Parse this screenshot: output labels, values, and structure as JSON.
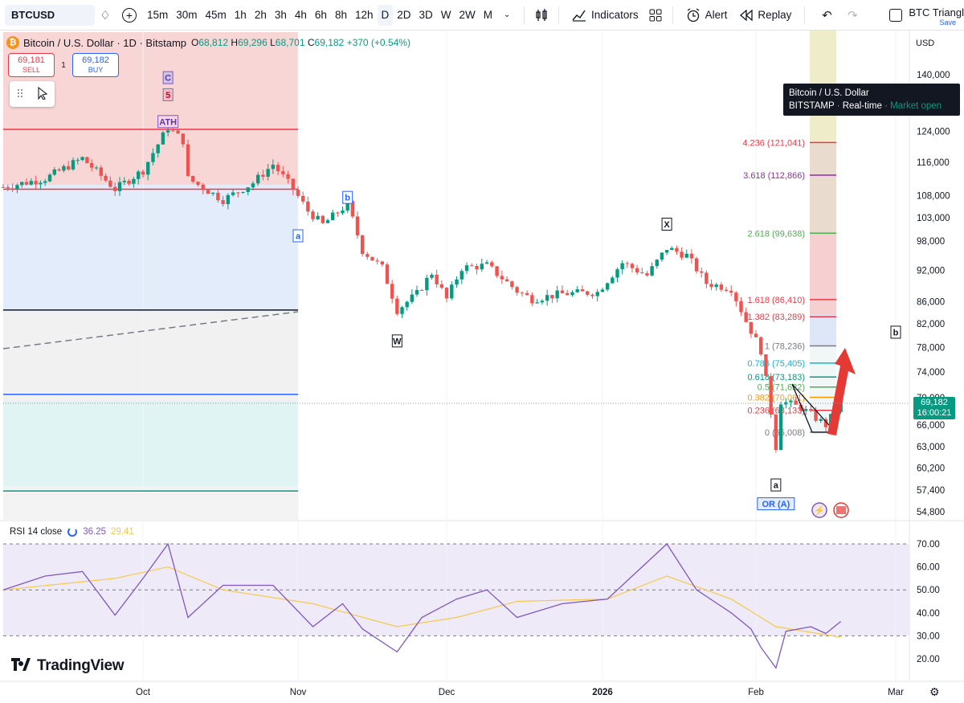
{
  "toolbar": {
    "symbol": "BTCUSD",
    "timeframes": [
      "15m",
      "30m",
      "45m",
      "1h",
      "2h",
      "3h",
      "4h",
      "6h",
      "8h",
      "12h",
      "D",
      "2D",
      "3D",
      "W",
      "2W",
      "M"
    ],
    "active_timeframe": "D",
    "indicators_label": "Indicators",
    "alert_label": "Alert",
    "replay_label": "Replay",
    "layout_name": "BTC Triangl",
    "layout_save": "Save"
  },
  "legend": {
    "title": "Bitcoin / U.S. Dollar · 1D · Bitstamp",
    "o_key": "O",
    "o_val": "68,812",
    "h_key": "H",
    "h_val": "69,296",
    "l_key": "L",
    "l_val": "68,701",
    "c_key": "C",
    "c_val": "69,182",
    "change": "+370 (+0.54%)"
  },
  "trade": {
    "sell_price": "69,181",
    "sell_label": "SELL",
    "spread": "1",
    "buy_price": "69,182",
    "buy_label": "BUY"
  },
  "tooltip": {
    "line1": "Bitcoin / U.S. Dollar",
    "exchange": "BITSTAMP",
    "realtime": "Real-time",
    "status": "Market open"
  },
  "price_tag": {
    "price": "69,182",
    "countdown": "16:00:21"
  },
  "currency": "USD",
  "colors": {
    "up": "#089981",
    "down": "#ef5350",
    "rsi": "#7e57c2",
    "rsi_ma": "#f7c948",
    "accent": "#2962ff"
  },
  "chart_data": {
    "type": "candlestick",
    "price_axis": {
      "scale": "log",
      "ticks": [
        "140,000",
        "124,000",
        "116,000",
        "108,000",
        "103,000",
        "98,000",
        "92,000",
        "86,000",
        "82,000",
        "78,000",
        "74,000",
        "70,000",
        "66,000",
        "63,000",
        "60,200",
        "57,400",
        "54,800"
      ],
      "tick_values": [
        140000,
        124000,
        116000,
        108000,
        103000,
        98000,
        92000,
        86000,
        82000,
        78000,
        74000,
        70000,
        66000,
        63000,
        60200,
        57400,
        54800
      ]
    },
    "time_axis": {
      "labels": [
        "Oct",
        "Nov",
        "Dec",
        "2026",
        "Feb",
        "Mar"
      ]
    },
    "price_path": [
      [
        "2025-09-01",
        110000
      ],
      [
        "2025-09-10",
        112000
      ],
      [
        "2025-09-18",
        117000
      ],
      [
        "2025-09-25",
        109500
      ],
      [
        "2025-10-01",
        114000
      ],
      [
        "2025-10-06",
        125000
      ],
      [
        "2025-10-09",
        121500
      ],
      [
        "2025-10-10",
        112000
      ],
      [
        "2025-10-17",
        107000
      ],
      [
        "2025-10-23",
        111000
      ],
      [
        "2025-10-27",
        115500
      ],
      [
        "2025-10-31",
        109500
      ],
      [
        "2025-11-03",
        104500
      ],
      [
        "2025-11-06",
        101500
      ],
      [
        "2025-11-11",
        106000
      ],
      [
        "2025-11-14",
        96000
      ],
      [
        "2025-11-18",
        92500
      ],
      [
        "2025-11-21",
        84500
      ],
      [
        "2025-11-25",
        87500
      ],
      [
        "2025-11-28",
        91500
      ],
      [
        "2025-12-01",
        86500
      ],
      [
        "2025-12-04",
        92500
      ],
      [
        "2025-12-09",
        93000
      ],
      [
        "2025-12-15",
        88000
      ],
      [
        "2025-12-18",
        86500
      ],
      [
        "2025-12-24",
        87500
      ],
      [
        "2025-12-31",
        87800
      ],
      [
        "2026-01-05",
        93500
      ],
      [
        "2026-01-10",
        91000
      ],
      [
        "2026-01-14",
        96500
      ],
      [
        "2026-01-18",
        95000
      ],
      [
        "2026-01-22",
        89500
      ],
      [
        "2026-01-27",
        88500
      ],
      [
        "2026-01-30",
        82500
      ],
      [
        "2026-02-02",
        77500
      ],
      [
        "2026-02-05",
        63000
      ],
      [
        "2026-02-06",
        69500
      ],
      [
        "2026-02-10",
        68500
      ],
      [
        "2026-02-15",
        66000
      ],
      [
        "2026-02-18",
        69182
      ]
    ],
    "wave_labels": [
      {
        "text": "C",
        "date": "2025-10-06",
        "price": 139000
      },
      {
        "text": "5",
        "date": "2025-10-06",
        "price": 134000
      },
      {
        "text": "ATH",
        "date": "2025-10-06",
        "price": 126500
      },
      {
        "text": "b",
        "date": "2025-11-11",
        "price": 107500
      },
      {
        "text": "a",
        "date": "2025-11-01",
        "price": 99000
      },
      {
        "text": "W",
        "date": "2025-11-21",
        "price": 79000
      },
      {
        "text": "X",
        "date": "2026-01-14",
        "price": 101500
      },
      {
        "text": "a",
        "date": "2026-02-05",
        "price": 58000
      },
      {
        "text": "b",
        "date": "2026-03-01",
        "price": 80500
      },
      {
        "text": "OR (A)",
        "date": "2026-02-05",
        "price": 55700
      }
    ],
    "fib_levels": [
      {
        "label": "4.236 (121,041)",
        "price": 121041,
        "color": "#f23645"
      },
      {
        "label": "3.618 (112,866)",
        "price": 112866,
        "color": "#9c27b0"
      },
      {
        "label": "2.618 (99,638)",
        "price": 99638,
        "color": "#4caf50"
      },
      {
        "label": "1.618 (86,410)",
        "price": 86410,
        "color": "#f23645"
      },
      {
        "label": "1.382 (83,289)",
        "price": 83289,
        "color": "#f23645"
      },
      {
        "label": "1 (78,236)",
        "price": 78236,
        "color": "#787b86"
      },
      {
        "label": "0.786 (75,405)",
        "price": 75405,
        "color": "#00bcd4"
      },
      {
        "label": "0.618 (73,183)",
        "price": 73183,
        "color": "#089981"
      },
      {
        "label": "0.5 (71,622)",
        "price": 71622,
        "color": "#4caf50"
      },
      {
        "label": "0.382 (70,061)",
        "price": 70061,
        "color": "#ff9800"
      },
      {
        "label": "0.236 (68,133)",
        "price": 68133,
        "color": "#f23645"
      },
      {
        "label": "0 (65,008)",
        "price": 65008,
        "color": "#787b86"
      }
    ],
    "horizontal_lines": [
      {
        "price": 124500,
        "color": "#f23645"
      },
      {
        "price": 109500,
        "color": "#f23645"
      },
      {
        "price": 84500,
        "color": "#131722"
      },
      {
        "price": 70500,
        "color": "#2962ff"
      },
      {
        "price": 57300,
        "color": "#089981"
      }
    ],
    "rsi": {
      "label": "RSI 14 close",
      "value": "36.25",
      "ma_value": "29.41",
      "ticks": [
        "70.00",
        "60.00",
        "50.00",
        "40.00",
        "30.00",
        "20.00"
      ],
      "tick_values": [
        70,
        60,
        50,
        40,
        30,
        20
      ],
      "bands": [
        30,
        50,
        70
      ],
      "path": [
        [
          "2025-09-01",
          50
        ],
        [
          "2025-09-10",
          56
        ],
        [
          "2025-09-18",
          58
        ],
        [
          "2025-09-25",
          39
        ],
        [
          "2025-10-01",
          55
        ],
        [
          "2025-10-06",
          70
        ],
        [
          "2025-10-10",
          38
        ],
        [
          "2025-10-17",
          52
        ],
        [
          "2025-10-27",
          52
        ],
        [
          "2025-11-04",
          34
        ],
        [
          "2025-11-10",
          44
        ],
        [
          "2025-11-14",
          33
        ],
        [
          "2025-11-21",
          23
        ],
        [
          "2025-11-26",
          38
        ],
        [
          "2025-12-03",
          46
        ],
        [
          "2025-12-09",
          50
        ],
        [
          "2025-12-15",
          38
        ],
        [
          "2025-12-24",
          44
        ],
        [
          "2026-01-02",
          46
        ],
        [
          "2026-01-07",
          56
        ],
        [
          "2026-01-14",
          70
        ],
        [
          "2026-01-20",
          50
        ],
        [
          "2026-01-27",
          40
        ],
        [
          "2026-01-31",
          33
        ],
        [
          "2026-02-02",
          25
        ],
        [
          "2026-02-05",
          16
        ],
        [
          "2026-02-07",
          32
        ],
        [
          "2026-02-12",
          34
        ],
        [
          "2026-02-15",
          31
        ],
        [
          "2026-02-18",
          36.25
        ]
      ],
      "ma_path": [
        [
          "2025-09-01",
          50
        ],
        [
          "2025-09-25",
          55
        ],
        [
          "2025-10-06",
          60
        ],
        [
          "2025-10-17",
          50
        ],
        [
          "2025-11-04",
          44
        ],
        [
          "2025-11-21",
          34
        ],
        [
          "2025-12-03",
          38
        ],
        [
          "2025-12-15",
          45
        ],
        [
          "2026-01-02",
          46
        ],
        [
          "2026-01-14",
          56
        ],
        [
          "2026-01-27",
          46
        ],
        [
          "2026-02-05",
          34
        ],
        [
          "2026-02-18",
          29.41
        ]
      ]
    }
  }
}
